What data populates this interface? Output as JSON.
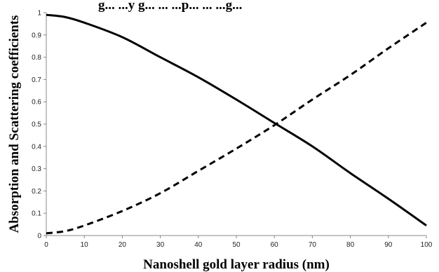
{
  "top_text": "g... ...y g... ... ...p... ... ...g...",
  "chart_data": {
    "type": "line",
    "title": "",
    "xlabel": "Nanoshell gold layer radius (nm)",
    "ylabel": "Absorption and Scattering coefficients",
    "xlim": [
      0,
      100
    ],
    "ylim": [
      0,
      1
    ],
    "xticks": [
      "0",
      "10",
      "20",
      "30",
      "40",
      "50",
      "60",
      "70",
      "80",
      "90",
      "100"
    ],
    "yticks": [
      "0",
      "0.1",
      "0.2",
      "0.3",
      "0.4",
      "0.5",
      "0.6",
      "0.7",
      "0.8",
      "0.9",
      "1"
    ],
    "grid": false,
    "legend": "none",
    "x": [
      0,
      5,
      10,
      20,
      30,
      40,
      50,
      60,
      70,
      80,
      90,
      100
    ],
    "series": [
      {
        "style": "solid",
        "color": "#000000",
        "values": [
          0.99,
          0.98,
          0.955,
          0.89,
          0.8,
          0.71,
          0.61,
          0.505,
          0.4,
          0.28,
          0.165,
          0.045
        ]
      },
      {
        "style": "dashed",
        "color": "#000000",
        "values": [
          0.01,
          0.02,
          0.045,
          0.11,
          0.19,
          0.29,
          0.39,
          0.495,
          0.61,
          0.72,
          0.84,
          0.955
        ]
      }
    ]
  }
}
